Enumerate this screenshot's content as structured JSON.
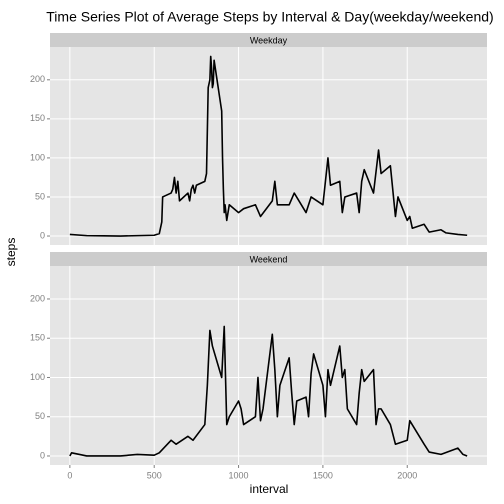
{
  "chart_data": {
    "type": "line",
    "title": "Time Series Plot of Average Steps by Interval & Day(weekday/weekend)",
    "xlabel": "interval",
    "ylabel": "steps",
    "xlim": [
      -117.75,
      2472.75
    ],
    "xticks": [
      0,
      500,
      1000,
      1500,
      2000
    ],
    "ylim": [
      -11.5,
      242
    ],
    "yticks": [
      0,
      50,
      100,
      150,
      200
    ],
    "grid": true,
    "series": [
      {
        "name": "Weekday",
        "color": "#000000",
        "x": [
          0,
          100,
          200,
          300,
          400,
          500,
          530,
          545,
          550,
          600,
          610,
          620,
          630,
          640,
          650,
          700,
          710,
          720,
          730,
          740,
          750,
          800,
          810,
          820,
          830,
          835,
          840,
          845,
          850,
          855,
          900,
          905,
          910,
          915,
          920,
          930,
          945,
          1000,
          1030,
          1100,
          1130,
          1200,
          1215,
          1230,
          1300,
          1330,
          1400,
          1430,
          1500,
          1530,
          1545,
          1600,
          1615,
          1630,
          1700,
          1715,
          1730,
          1745,
          1800,
          1830,
          1845,
          1900,
          1930,
          1945,
          2000,
          2015,
          2030,
          2100,
          2130,
          2200,
          2230,
          2300,
          2355
        ],
        "values": [
          2,
          0.5,
          0.3,
          0,
          0.5,
          1,
          3,
          18,
          50,
          55,
          60,
          75,
          55,
          70,
          45,
          55,
          45,
          60,
          65,
          55,
          65,
          70,
          80,
          190,
          200,
          230,
          215,
          190,
          195,
          225,
          160,
          100,
          60,
          30,
          40,
          20,
          40,
          30,
          35,
          40,
          25,
          45,
          70,
          40,
          40,
          55,
          30,
          50,
          40,
          100,
          65,
          70,
          30,
          50,
          55,
          30,
          70,
          85,
          55,
          110,
          80,
          90,
          25,
          50,
          20,
          25,
          10,
          15,
          5,
          8,
          4,
          2,
          1
        ]
      },
      {
        "name": "Weekend",
        "color": "#000000",
        "x": [
          0,
          10,
          100,
          200,
          300,
          400,
          500,
          530,
          600,
          630,
          700,
          730,
          800,
          815,
          830,
          845,
          900,
          915,
          930,
          945,
          1000,
          1015,
          1030,
          1100,
          1115,
          1130,
          1145,
          1200,
          1215,
          1230,
          1245,
          1300,
          1315,
          1330,
          1345,
          1400,
          1415,
          1430,
          1445,
          1500,
          1515,
          1530,
          1545,
          1600,
          1615,
          1630,
          1645,
          1700,
          1715,
          1730,
          1745,
          1800,
          1815,
          1830,
          1845,
          1900,
          1930,
          2000,
          2015,
          2100,
          2130,
          2200,
          2300,
          2330,
          2355
        ],
        "values": [
          0,
          4,
          0,
          0,
          0,
          2,
          1,
          4,
          20,
          15,
          25,
          20,
          40,
          90,
          160,
          140,
          100,
          165,
          40,
          50,
          70,
          60,
          40,
          50,
          100,
          45,
          60,
          155,
          110,
          50,
          90,
          125,
          80,
          40,
          70,
          75,
          50,
          105,
          130,
          90,
          50,
          110,
          90,
          140,
          100,
          110,
          60,
          40,
          80,
          110,
          95,
          110,
          40,
          60,
          60,
          40,
          15,
          20,
          45,
          15,
          5,
          2,
          10,
          2,
          0
        ]
      }
    ]
  }
}
